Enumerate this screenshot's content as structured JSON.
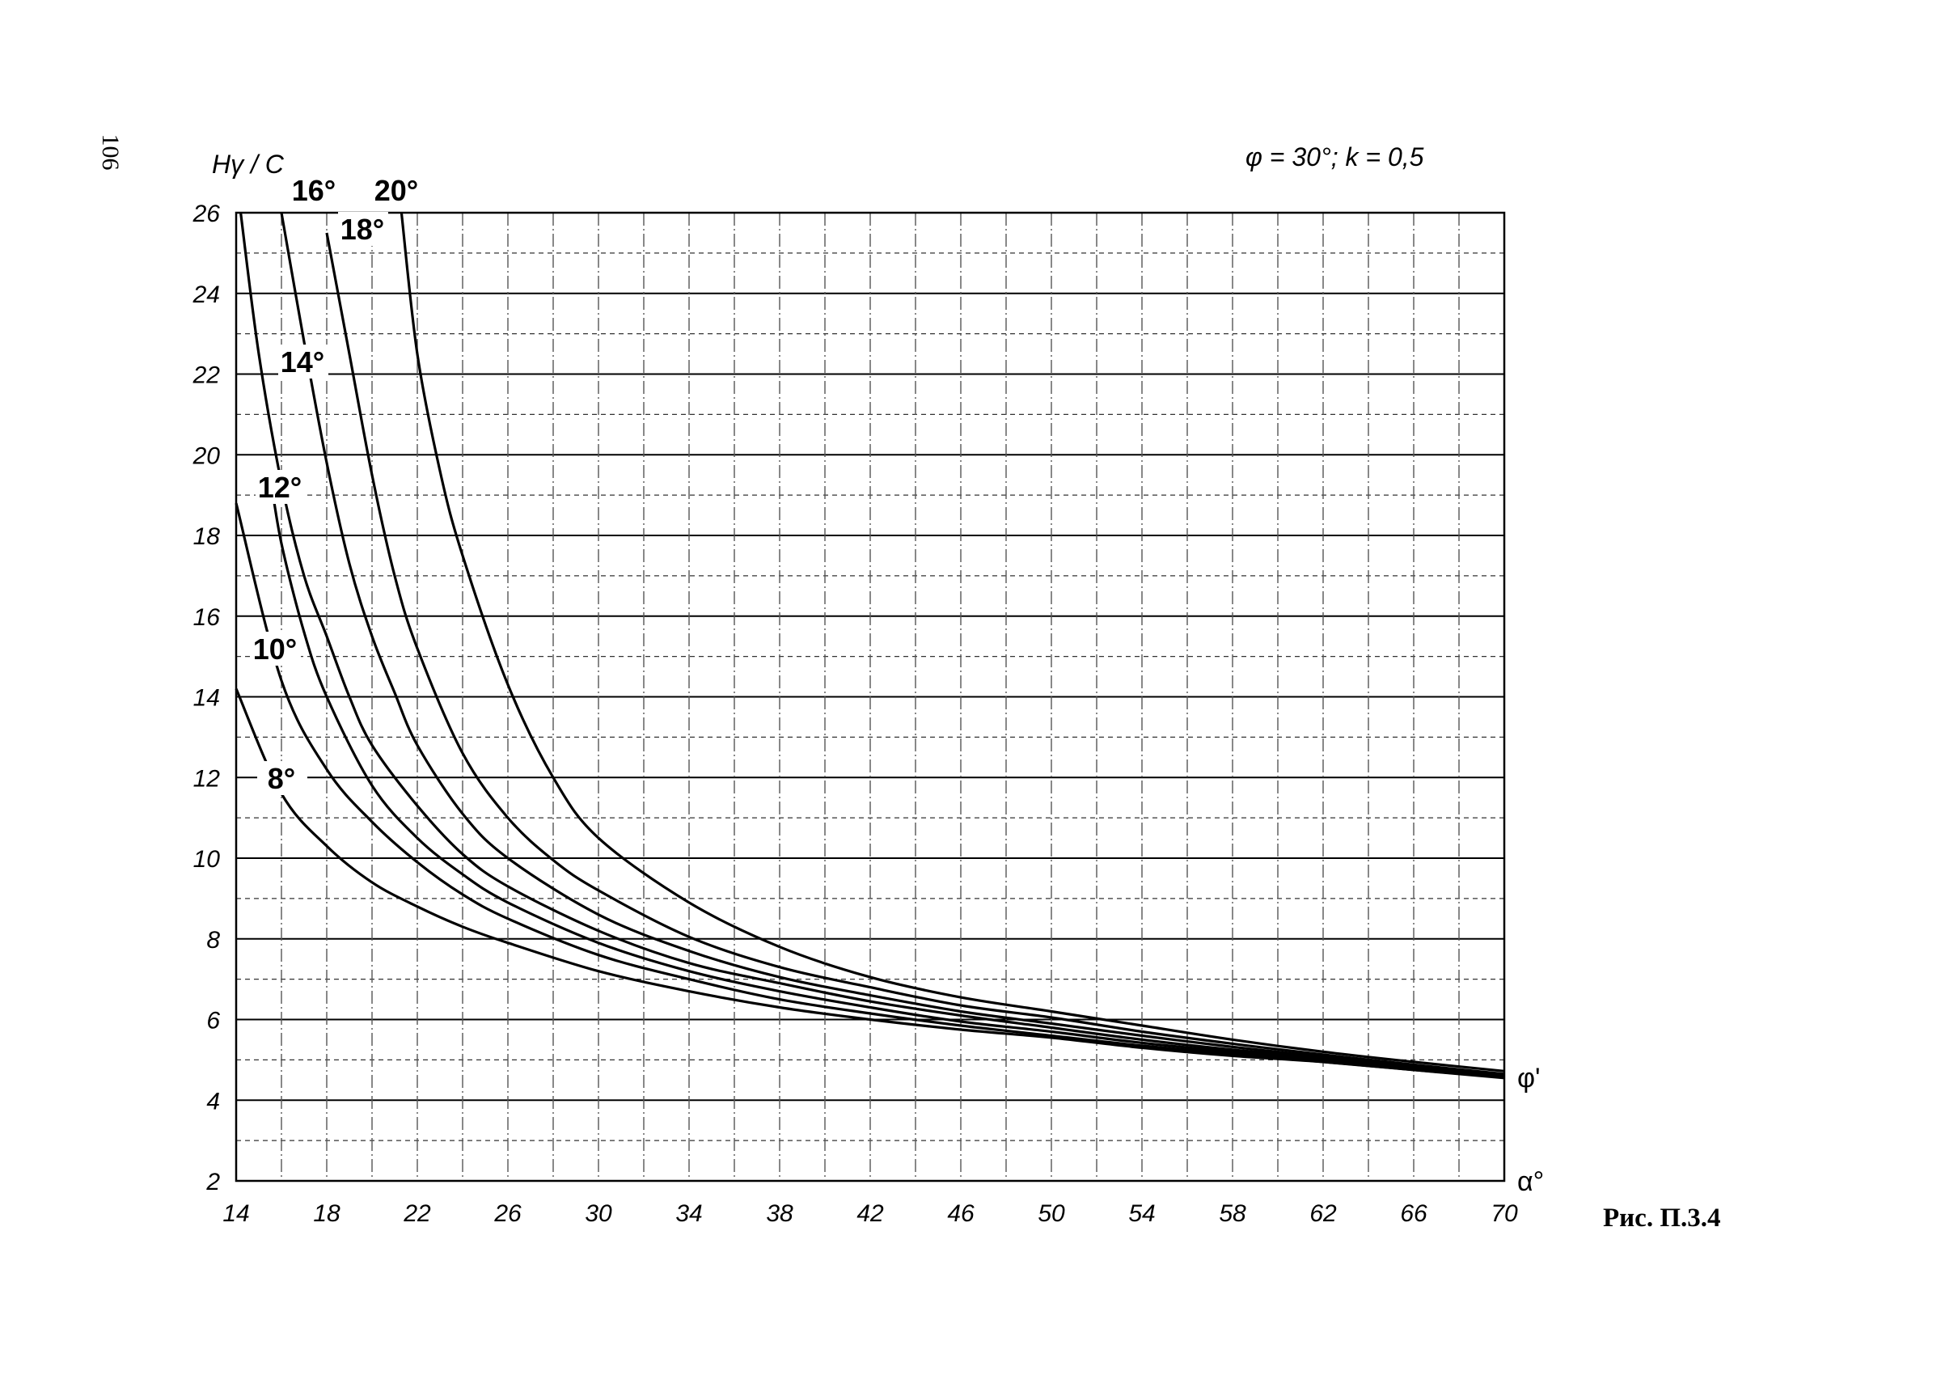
{
  "page_number": "106",
  "params_label": "φ = 30°; k = 0,5",
  "figure_caption": "Рис. П.3.4",
  "chart_data": {
    "type": "line",
    "title": "",
    "ylabel": "Hγ / C",
    "xlabel": "α°",
    "right_label": "φ'",
    "xlim": [
      14,
      70
    ],
    "ylim": [
      2,
      26
    ],
    "x_ticks": [
      14,
      18,
      22,
      26,
      30,
      34,
      38,
      42,
      46,
      50,
      54,
      58,
      62,
      66,
      70
    ],
    "y_ticks": [
      2,
      4,
      6,
      8,
      10,
      12,
      14,
      16,
      18,
      20,
      22,
      24,
      26
    ],
    "grid": true,
    "series": [
      {
        "name": "8°",
        "x": [
          14,
          16,
          18,
          20,
          22,
          24,
          26,
          30,
          34,
          38,
          42,
          46,
          50,
          54,
          58,
          62,
          66,
          70
        ],
        "y": [
          14.2,
          11.6,
          10.3,
          9.4,
          8.8,
          8.3,
          7.9,
          7.2,
          6.7,
          6.3,
          6.0,
          5.75,
          5.55,
          5.3,
          5.1,
          4.95,
          4.75,
          4.55
        ]
      },
      {
        "name": "10°",
        "x": [
          14,
          16,
          18,
          20,
          22,
          24,
          26,
          30,
          34,
          38,
          42,
          46,
          50,
          54,
          58,
          62,
          66,
          70
        ],
        "y": [
          18.8,
          14.4,
          12.2,
          10.9,
          9.9,
          9.1,
          8.5,
          7.6,
          7.0,
          6.5,
          6.15,
          5.85,
          5.6,
          5.35,
          5.15,
          4.95,
          4.75,
          4.57
        ]
      },
      {
        "name": "12°",
        "x": [
          15.5,
          16,
          17,
          18,
          20,
          22,
          24,
          26,
          30,
          34,
          38,
          42,
          46,
          50,
          54,
          58,
          62,
          66,
          70
        ],
        "y": [
          19.5,
          17.8,
          15.6,
          14.0,
          11.8,
          10.5,
          9.6,
          8.9,
          7.9,
          7.2,
          6.7,
          6.3,
          5.95,
          5.7,
          5.42,
          5.2,
          5.0,
          4.78,
          4.58
        ]
      },
      {
        "name": "14°",
        "x": [
          14.2,
          15,
          16,
          17,
          18,
          19,
          20,
          22,
          24,
          26,
          30,
          34,
          38,
          42,
          46,
          50,
          54,
          58,
          62,
          66,
          70
        ],
        "y": [
          26,
          22.5,
          19.3,
          17.0,
          15.5,
          14.0,
          12.8,
          11.3,
          10.1,
          9.3,
          8.2,
          7.4,
          6.9,
          6.45,
          6.1,
          5.8,
          5.5,
          5.25,
          5.05,
          4.8,
          4.6
        ]
      },
      {
        "name": "16°",
        "x": [
          16,
          17,
          18,
          19,
          20,
          21,
          22,
          24,
          26,
          30,
          34,
          38,
          42,
          46,
          50,
          54,
          58,
          62,
          66,
          70
        ],
        "y": [
          26,
          22.8,
          19.8,
          17.3,
          15.5,
          14.1,
          12.8,
          11.1,
          10.0,
          8.6,
          7.7,
          7.05,
          6.6,
          6.2,
          5.9,
          5.6,
          5.32,
          5.08,
          4.85,
          4.62
        ]
      },
      {
        "name": "18°",
        "x": [
          18,
          19,
          20,
          21,
          22,
          24,
          26,
          28,
          30,
          34,
          38,
          42,
          46,
          50,
          54,
          58,
          62,
          66,
          70
        ],
        "y": [
          25.5,
          22.5,
          19.5,
          17.0,
          15.2,
          12.6,
          11.0,
          9.95,
          9.2,
          8.05,
          7.3,
          6.8,
          6.35,
          6.05,
          5.7,
          5.4,
          5.13,
          4.88,
          4.65
        ]
      },
      {
        "name": "20°",
        "x": [
          21.3,
          22,
          23,
          24,
          26,
          28,
          30,
          34,
          38,
          42,
          46,
          50,
          54,
          58,
          62,
          66,
          70
        ],
        "y": [
          26,
          22.5,
          19.6,
          17.5,
          14.3,
          12.0,
          10.5,
          8.9,
          7.8,
          7.05,
          6.55,
          6.2,
          5.85,
          5.5,
          5.2,
          4.95,
          4.72
        ]
      }
    ],
    "curve_labels": [
      "8°",
      "10°",
      "12°",
      "14°",
      "16°",
      "18°",
      "20°"
    ]
  }
}
